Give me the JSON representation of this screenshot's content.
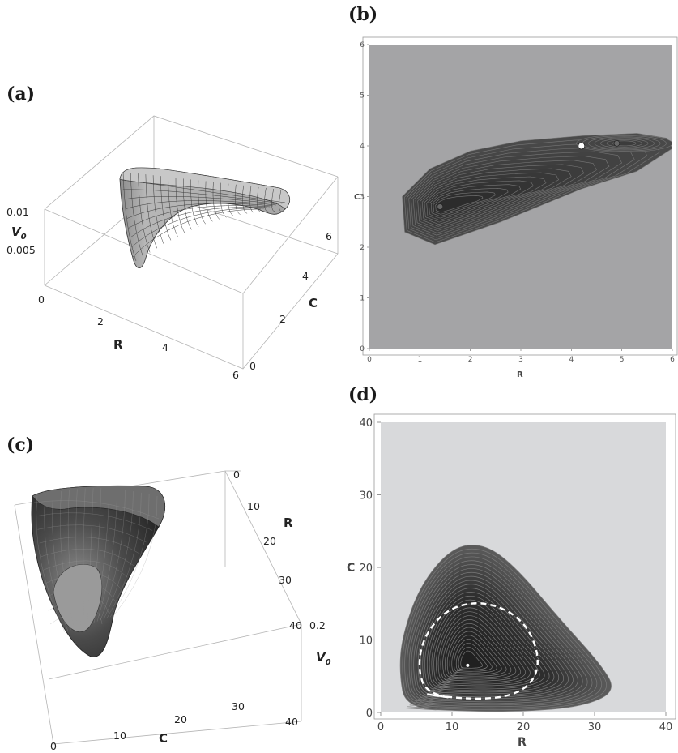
{
  "panels": {
    "a": "(a)",
    "b": "(b)",
    "c": "(c)",
    "d": "(d)"
  },
  "chart_data": [
    {
      "panel": "(a)",
      "type": "surface3d",
      "xlabel": "R",
      "ylabel": "C",
      "zlabel": "V",
      "zlabel_sub": "0",
      "x_ticks": [
        "0",
        "2",
        "4",
        "6"
      ],
      "y_ticks": [
        "0",
        "2",
        "4",
        "6"
      ],
      "z_ticks": [
        "0.005",
        "0.01"
      ],
      "xlim": [
        0,
        6
      ],
      "ylim": [
        0,
        6
      ],
      "colors": {
        "surface": "#a9a9a9",
        "mesh": "#3a3a3a"
      }
    },
    {
      "panel": "(b)",
      "type": "contour",
      "xlabel": "R",
      "ylabel": "C",
      "x_ticks": [
        "0",
        "1",
        "2",
        "3",
        "4",
        "5",
        "6"
      ],
      "y_ticks": [
        "0",
        "1",
        "2",
        "3",
        "4",
        "5",
        "6"
      ],
      "xlim": [
        0,
        6
      ],
      "ylim": [
        0,
        6
      ],
      "points": [
        {
          "x": 1.4,
          "y": 2.8,
          "kind": "stable"
        },
        {
          "x": 4.2,
          "y": 4.0,
          "kind": "saddle"
        },
        {
          "x": 4.9,
          "y": 4.05,
          "kind": "stable"
        }
      ],
      "colors": {
        "background": "#a4a4a6",
        "inner": "#2a2a2a"
      }
    },
    {
      "panel": "(c)",
      "type": "surface3d",
      "xlabel": "C",
      "ylabel": "R",
      "zlabel": "V",
      "zlabel_sub": "0",
      "x_ticks": [
        "0",
        "10",
        "20",
        "30",
        "40"
      ],
      "y_ticks": [
        "0",
        "10",
        "20",
        "30",
        "40"
      ],
      "z_ticks": [
        "0.2"
      ],
      "xlim": [
        0,
        40
      ],
      "ylim": [
        0,
        40
      ],
      "colors": {
        "surface": "#3c3c3c",
        "mesh": "#9a9a9a"
      }
    },
    {
      "panel": "(d)",
      "type": "contour",
      "xlabel": "R",
      "ylabel": "C",
      "x_ticks": [
        "0",
        "10",
        "20",
        "30",
        "40"
      ],
      "y_ticks": [
        "0",
        "10",
        "20",
        "30",
        "40"
      ],
      "xlim": [
        0,
        40
      ],
      "ylim": [
        0,
        40
      ],
      "points": [
        {
          "x": 12.2,
          "y": 6.5,
          "kind": "stable"
        }
      ],
      "dashed_orbit": true,
      "colors": {
        "background": "#d8d9db",
        "inner": "#1f1f1f",
        "orbit": "#ffffff"
      }
    }
  ]
}
